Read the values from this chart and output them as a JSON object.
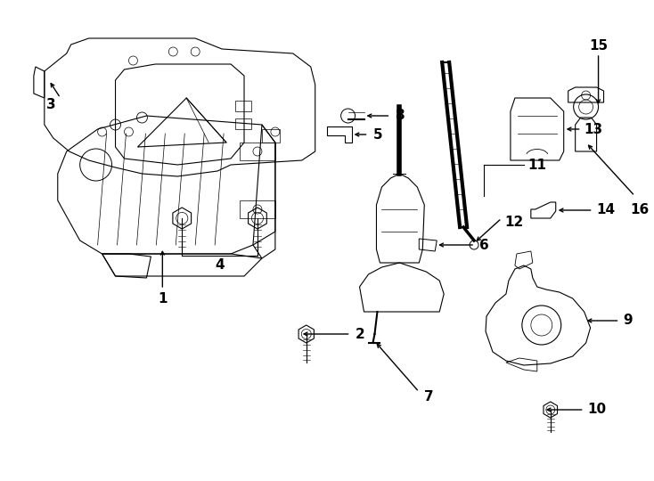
{
  "background": "#ffffff",
  "lc": "#000000",
  "fig_w": 7.34,
  "fig_h": 5.4,
  "dpi": 100,
  "lw": 0.8,
  "fs": 11
}
